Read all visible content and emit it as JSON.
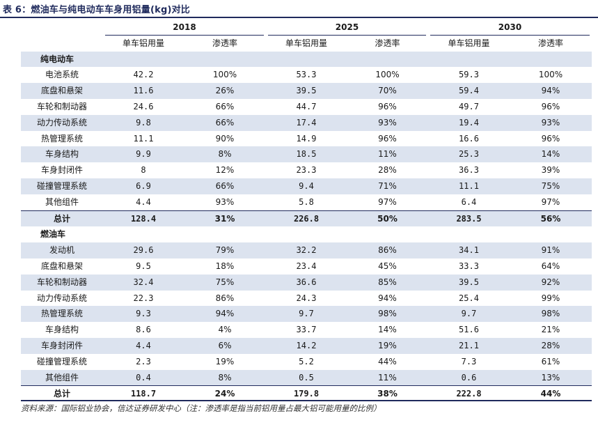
{
  "title": "表 6：燃油车与纯电动车车身用铝量(kg)对比",
  "years": [
    "2018",
    "2025",
    "2030"
  ],
  "col_headers": [
    "单车铝用量",
    "渗透率",
    "单车铝用量",
    "渗透率",
    "单车铝用量",
    "渗透率"
  ],
  "sections": [
    {
      "label": "纯电动车",
      "rows": [
        {
          "name": "电池系统",
          "v": [
            "42.2",
            "100%",
            "53.3",
            "100%",
            "59.3",
            "100%"
          ]
        },
        {
          "name": "底盘和悬架",
          "v": [
            "11.6",
            "26%",
            "39.5",
            "70%",
            "59.4",
            "94%"
          ]
        },
        {
          "name": "车轮和制动器",
          "v": [
            "24.6",
            "66%",
            "44.7",
            "96%",
            "49.7",
            "96%"
          ]
        },
        {
          "name": "动力传动系统",
          "v": [
            "9.8",
            "66%",
            "17.4",
            "93%",
            "19.4",
            "93%"
          ]
        },
        {
          "name": "热管理系统",
          "v": [
            "11.1",
            "90%",
            "14.9",
            "96%",
            "16.6",
            "96%"
          ]
        },
        {
          "name": "车身结构",
          "v": [
            "9.9",
            "8%",
            "18.5",
            "11%",
            "25.3",
            "14%"
          ]
        },
        {
          "name": "车身封闭件",
          "v": [
            "8",
            "12%",
            "23.3",
            "28%",
            "36.3",
            "39%"
          ]
        },
        {
          "name": "碰撞管理系统",
          "v": [
            "6.9",
            "66%",
            "9.4",
            "71%",
            "11.1",
            "75%"
          ]
        },
        {
          "name": "其他组件",
          "v": [
            "4.4",
            "93%",
            "5.8",
            "97%",
            "6.4",
            "97%"
          ]
        }
      ],
      "total": {
        "name": "总计",
        "v": [
          "128.4",
          "31%",
          "226.8",
          "50%",
          "283.5",
          "56%"
        ]
      }
    },
    {
      "label": "燃油车",
      "rows": [
        {
          "name": "发动机",
          "v": [
            "29.6",
            "79%",
            "32.2",
            "86%",
            "34.1",
            "91%"
          ]
        },
        {
          "name": "底盘和悬架",
          "v": [
            "9.5",
            "18%",
            "23.4",
            "45%",
            "33.3",
            "64%"
          ]
        },
        {
          "name": "车轮和制动器",
          "v": [
            "32.4",
            "75%",
            "36.6",
            "85%",
            "39.5",
            "92%"
          ]
        },
        {
          "name": "动力传动系统",
          "v": [
            "22.3",
            "86%",
            "24.3",
            "94%",
            "25.4",
            "99%"
          ]
        },
        {
          "name": "热管理系统",
          "v": [
            "9.3",
            "94%",
            "9.7",
            "98%",
            "9.7",
            "98%"
          ]
        },
        {
          "name": "车身结构",
          "v": [
            "8.6",
            "4%",
            "33.7",
            "14%",
            "51.6",
            "21%"
          ]
        },
        {
          "name": "车身封闭件",
          "v": [
            "4.4",
            "6%",
            "14.2",
            "19%",
            "21.1",
            "28%"
          ]
        },
        {
          "name": "碰撞管理系统",
          "v": [
            "2.3",
            "19%",
            "5.2",
            "44%",
            "7.3",
            "61%"
          ]
        },
        {
          "name": "其他组件",
          "v": [
            "0.4",
            "8%",
            "0.5",
            "11%",
            "0.6",
            "13%"
          ]
        }
      ],
      "total": {
        "name": "总计",
        "v": [
          "118.7",
          "24%",
          "179.8",
          "38%",
          "222.8",
          "44%"
        ]
      }
    }
  ],
  "source": "资料来源：国际铝业协会，信达证券研发中心（注：渗透率是指当前铝用量占最大铝可能用量的比例）",
  "colors": {
    "navy": "#1f2a5c",
    "band": "#dce3ef"
  }
}
